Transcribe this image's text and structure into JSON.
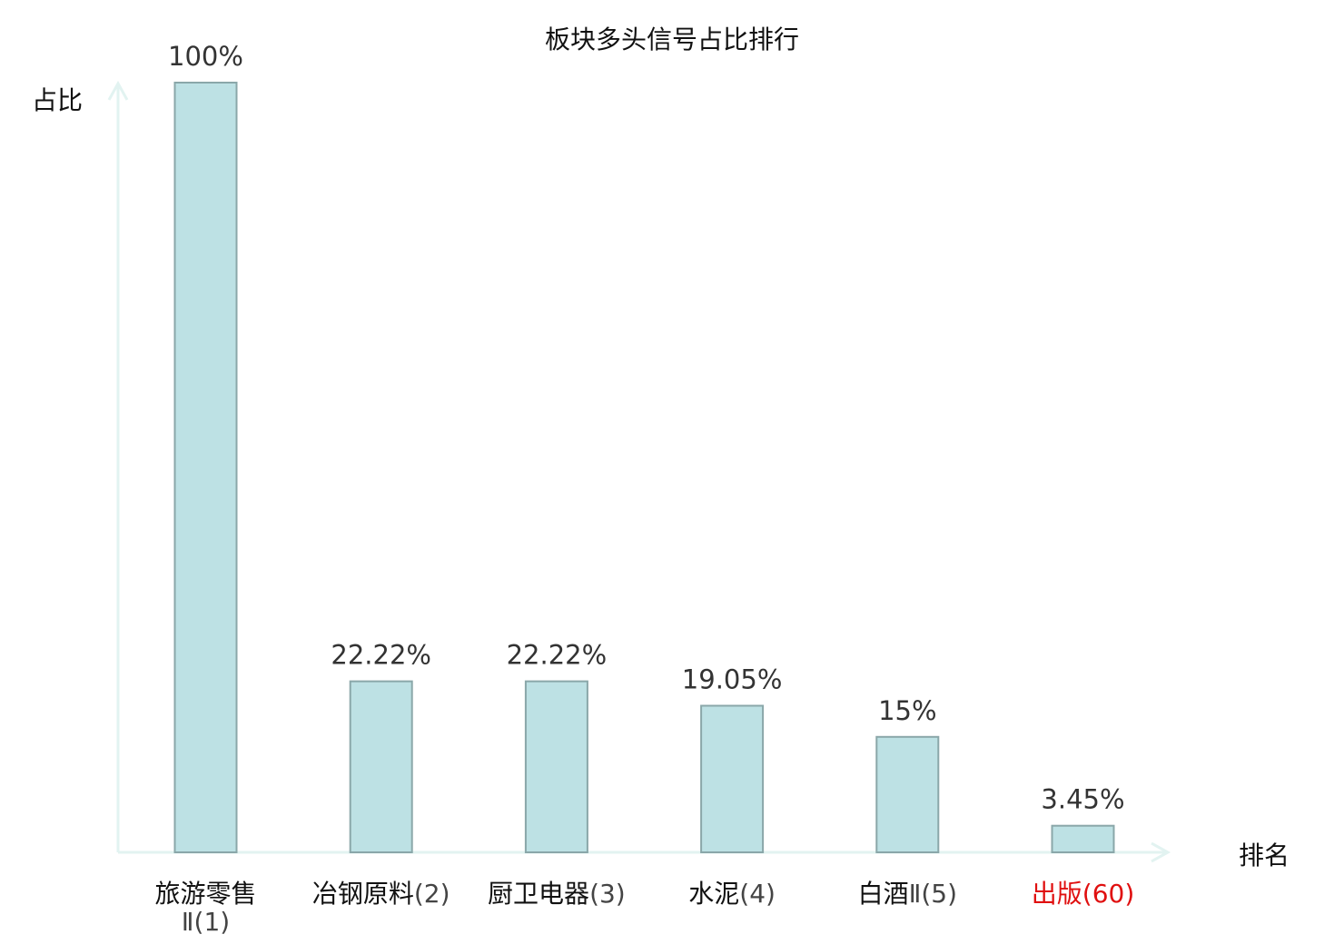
{
  "chart_data": {
    "type": "bar",
    "title": "板块多头信号占比排行",
    "ylabel": "占比",
    "xlabel": "排名",
    "ylim": [
      0,
      100
    ],
    "grid": false,
    "categories": [
      {
        "name": "旅游零售",
        "suffix": "Ⅱ",
        "rank": "(1)",
        "highlight": false
      },
      {
        "name": "冶钢原料",
        "suffix": "",
        "rank": "(2)",
        "highlight": false
      },
      {
        "name": "厨卫电器",
        "suffix": "",
        "rank": "(3)",
        "highlight": false
      },
      {
        "name": "水泥",
        "suffix": "",
        "rank": "(4)",
        "highlight": false
      },
      {
        "name": "白酒",
        "suffix": "Ⅱ",
        "rank": "(5)",
        "highlight": false
      },
      {
        "name": "出版",
        "suffix": "",
        "rank": "(60)",
        "highlight": true
      }
    ],
    "values": [
      100,
      22.22,
      22.22,
      19.05,
      15,
      3.45
    ],
    "value_labels": [
      "100%",
      "22.22%",
      "22.22%",
      "19.05%",
      "15%",
      "3.45%"
    ],
    "colors": {
      "bar_fill": "#bde1e4",
      "bar_stroke": "#8aa7a9",
      "axis": "#e2f3f1",
      "label_text": "#111111",
      "rank_text": "#444444",
      "highlight": "#e01010"
    }
  }
}
